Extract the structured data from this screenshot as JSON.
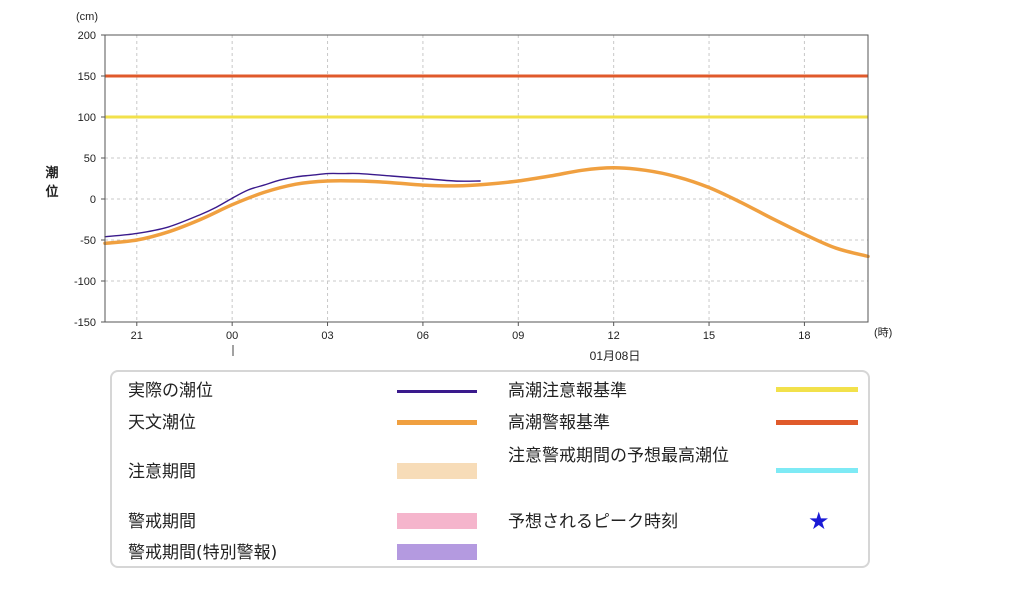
{
  "chart_data": {
    "type": "line",
    "unit_label": "(cm)",
    "xunit_label": "(時)",
    "ylabel": "潮位",
    "ylim": [
      -150,
      200
    ],
    "yticks": [
      -150,
      -100,
      -50,
      0,
      50,
      100,
      150,
      200
    ],
    "xlim": [
      -4,
      20
    ],
    "xticks": [
      {
        "h": -3,
        "label": "21"
      },
      {
        "h": 0,
        "label": "00"
      },
      {
        "h": 3,
        "label": "03"
      },
      {
        "h": 6,
        "label": "06"
      },
      {
        "h": 9,
        "label": "09"
      },
      {
        "h": 12,
        "label": "12"
      },
      {
        "h": 15,
        "label": "15"
      },
      {
        "h": 18,
        "label": "18"
      }
    ],
    "date_label": "01月08日",
    "grid": true,
    "thresholds": [
      {
        "name": "高潮警報基準",
        "value": 150,
        "color": "#e05a2b"
      },
      {
        "name": "高潮注意報基準",
        "value": 100,
        "color": "#f2e14b"
      }
    ],
    "series": [
      {
        "name": "天文潮位",
        "color": "#f0a040",
        "x": [
          -4,
          -3,
          -2,
          -1,
          0,
          1,
          2,
          3,
          4,
          5,
          6,
          7,
          8,
          9,
          10,
          11,
          12,
          13,
          14,
          15,
          16,
          17,
          18,
          19,
          20
        ],
        "y": [
          -54,
          -50,
          -40,
          -25,
          -7,
          8,
          18,
          22,
          22,
          20,
          17,
          16,
          18,
          22,
          28,
          35,
          38,
          35,
          27,
          14,
          -4,
          -24,
          -43,
          -60,
          -70
        ]
      },
      {
        "name": "実際の潮位",
        "color": "#3a1a8c",
        "x": [
          -4,
          -3,
          -2,
          -1,
          -0.5,
          0,
          0.5,
          1,
          1.5,
          2,
          2.5,
          3,
          3.5,
          4,
          5,
          6,
          7,
          7.8
        ],
        "y": [
          -46,
          -42,
          -34,
          -19,
          -10,
          1,
          11,
          17,
          23,
          27,
          29,
          31,
          31,
          31,
          28,
          25,
          22,
          22
        ]
      }
    ]
  },
  "legend": {
    "actual": "実際の潮位",
    "astronomical": "天文潮位",
    "caution_period": "注意期間",
    "warning_period": "警戒期間",
    "special_warning_period": "警戒期間(特別警報)",
    "advisory_standard": "高潮注意報基準",
    "warning_standard": "高潮警報基準",
    "predicted_max": "注意警戒期間の予想最高潮位",
    "peak_time": "予想されるピーク時刻",
    "colors": {
      "actual": "#3a1a8c",
      "astronomical": "#f0a040",
      "caution_period": "#f7dcb8",
      "warning_period": "#f5b5cc",
      "special_warning_period": "#b49ae0",
      "advisory_standard": "#f2e14b",
      "warning_standard": "#e05a2b",
      "predicted_max": "#7eeaf5",
      "peak_star": "#1a1ad6"
    },
    "star_symbol": "★"
  }
}
